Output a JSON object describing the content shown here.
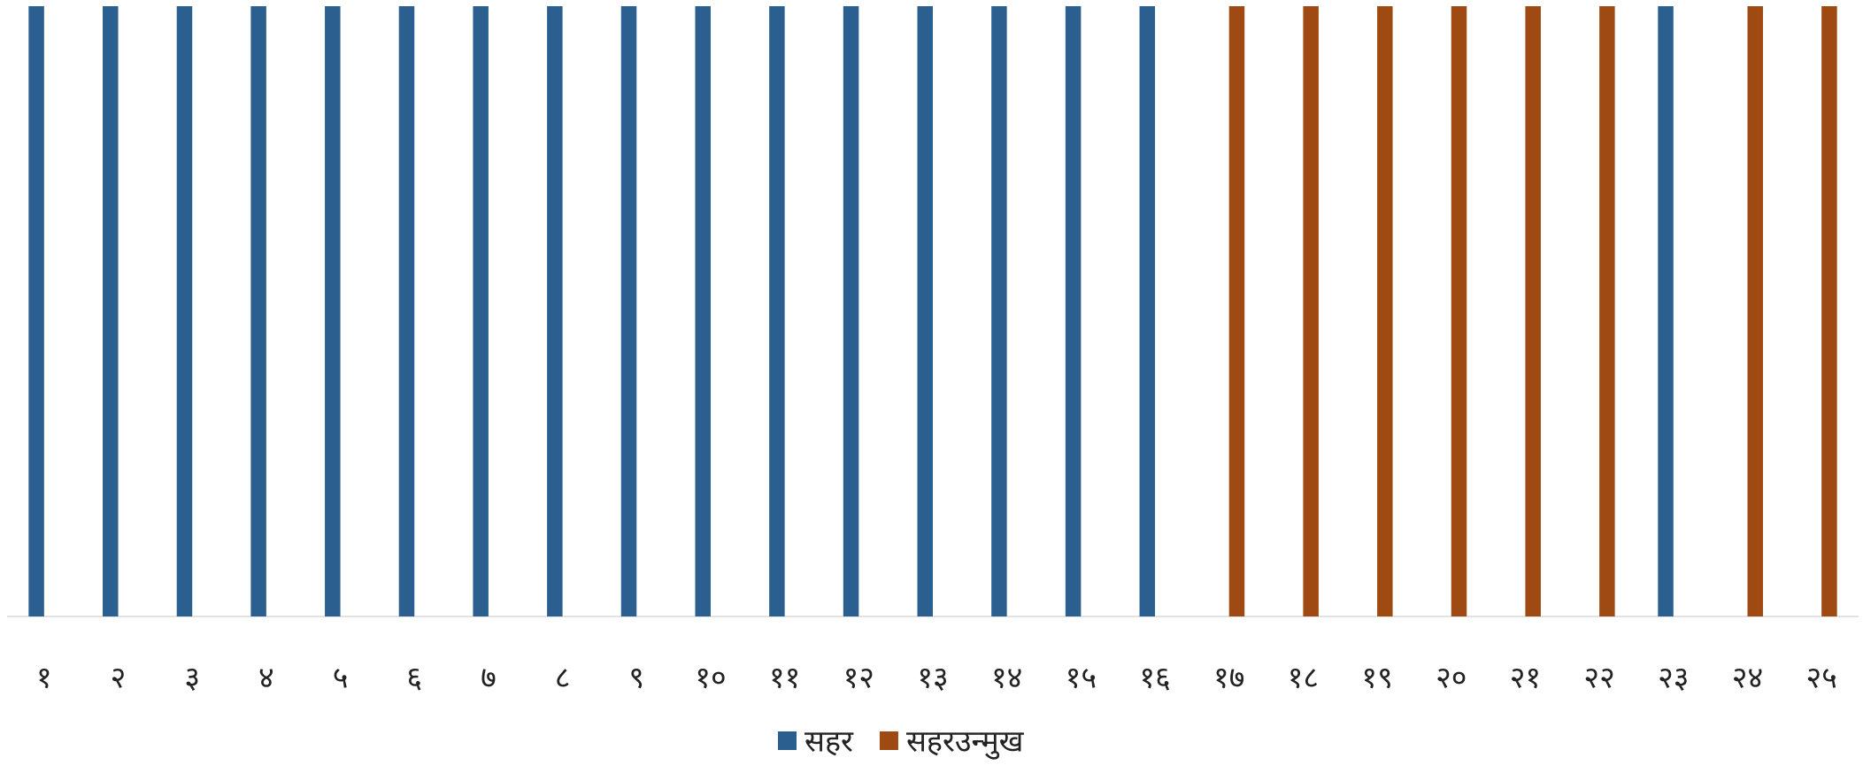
{
  "chart_data": {
    "type": "bar",
    "categories": [
      "१",
      "२",
      "३",
      "४",
      "५",
      "६",
      "७",
      "८",
      "९",
      "१०",
      "११",
      "१२",
      "१३",
      "१४",
      "१५",
      "१६",
      "१७",
      "१८",
      "१९",
      "२०",
      "२१",
      "२२",
      "२३",
      "२४",
      "२५"
    ],
    "series": [
      {
        "name": "सहर",
        "color": "#2a5f8f",
        "values": [
          1,
          1,
          1,
          1,
          1,
          1,
          1,
          1,
          1,
          1,
          1,
          1,
          1,
          1,
          1,
          1,
          null,
          null,
          null,
          null,
          null,
          null,
          1,
          null,
          null
        ]
      },
      {
        "name": "सहरउन्मुख",
        "color": "#9e4a12",
        "values": [
          null,
          null,
          null,
          null,
          null,
          null,
          null,
          null,
          null,
          null,
          null,
          null,
          null,
          null,
          null,
          null,
          1,
          1,
          1,
          1,
          1,
          1,
          null,
          1,
          1
        ]
      }
    ],
    "ylim": [
      0,
      1
    ]
  }
}
